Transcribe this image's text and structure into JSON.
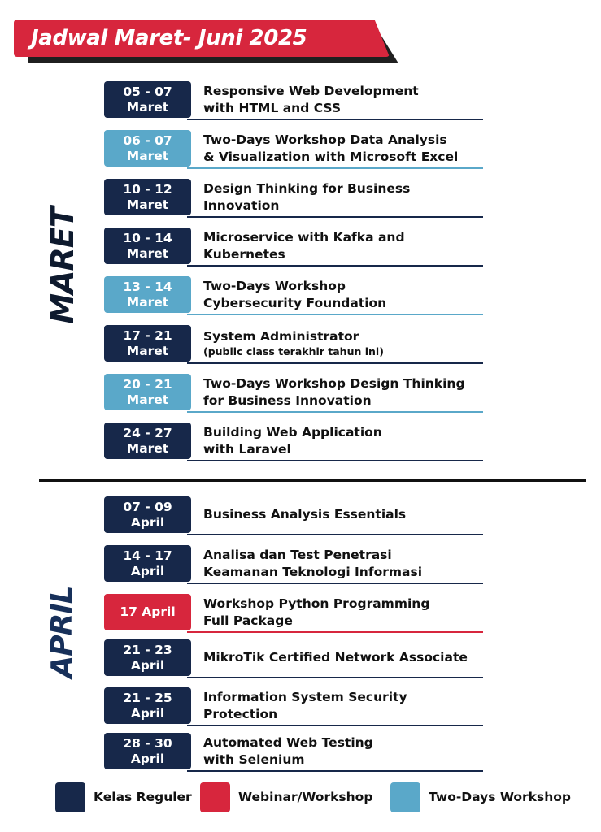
{
  "header": {
    "title": "Jadwal Maret- Juni 2025"
  },
  "colors": {
    "regular": "#17284a",
    "workshop": "#d7263d",
    "twoday": "#5aa8c9"
  },
  "months": [
    {
      "label": "MARET",
      "events": [
        {
          "date_lines": [
            "05 - 07",
            "Maret"
          ],
          "title_lines": [
            "Responsive Web Development",
            "with HTML and CSS"
          ],
          "type": "regular"
        },
        {
          "date_lines": [
            "06 - 07",
            "Maret"
          ],
          "title_lines": [
            "Two-Days Workshop Data Analysis",
            "& Visualization with Microsoft Excel"
          ],
          "type": "twoday"
        },
        {
          "date_lines": [
            "10 - 12",
            "Maret"
          ],
          "title_lines": [
            "Design Thinking for Business",
            "Innovation"
          ],
          "type": "regular"
        },
        {
          "date_lines": [
            "10 - 14",
            "Maret"
          ],
          "title_lines": [
            "Microservice with Kafka and",
            "Kubernetes"
          ],
          "type": "regular"
        },
        {
          "date_lines": [
            "13 - 14",
            "Maret"
          ],
          "title_lines": [
            "Two-Days Workshop",
            "Cybersecurity Foundation"
          ],
          "type": "twoday"
        },
        {
          "date_lines": [
            "17 - 21",
            "Maret"
          ],
          "title_lines": [
            "System Administrator",
            "(public class terakhir tahun ini)"
          ],
          "type": "regular",
          "small_second_line": true
        },
        {
          "date_lines": [
            "20 - 21",
            "Maret"
          ],
          "title_lines": [
            "Two-Days Workshop Design Thinking",
            "for Business Innovation"
          ],
          "type": "twoday"
        },
        {
          "date_lines": [
            "24 - 27",
            "Maret"
          ],
          "title_lines": [
            "Building Web Application",
            "with Laravel"
          ],
          "type": "regular"
        }
      ]
    },
    {
      "label": "APRIL",
      "events": [
        {
          "date_lines": [
            "07 - 09",
            "April"
          ],
          "title_lines": [
            "Business Analysis Essentials"
          ],
          "type": "regular"
        },
        {
          "date_lines": [
            "14 - 17",
            "April"
          ],
          "title_lines": [
            "Analisa dan Test Penetrasi",
            "Keamanan Teknologi Informasi"
          ],
          "type": "regular"
        },
        {
          "date_lines": [
            "17 April"
          ],
          "title_lines": [
            "Workshop Python Programming",
            "Full Package"
          ],
          "type": "workshop"
        },
        {
          "date_lines": [
            "21 - 23",
            "April"
          ],
          "title_lines": [
            "MikroTik Certified Network Associate"
          ],
          "type": "regular"
        },
        {
          "date_lines": [
            "21 - 25",
            "April"
          ],
          "title_lines": [
            "Information System Security",
            "Protection"
          ],
          "type": "regular"
        },
        {
          "date_lines": [
            "28 - 30",
            "April"
          ],
          "title_lines": [
            "Automated Web Testing",
            "with Selenium"
          ],
          "type": "regular"
        }
      ]
    }
  ],
  "legend": [
    {
      "label": "Kelas Reguler",
      "type": "regular"
    },
    {
      "label": "Webinar/Workshop",
      "type": "workshop"
    },
    {
      "label": "Two-Days Workshop",
      "type": "twoday"
    }
  ]
}
